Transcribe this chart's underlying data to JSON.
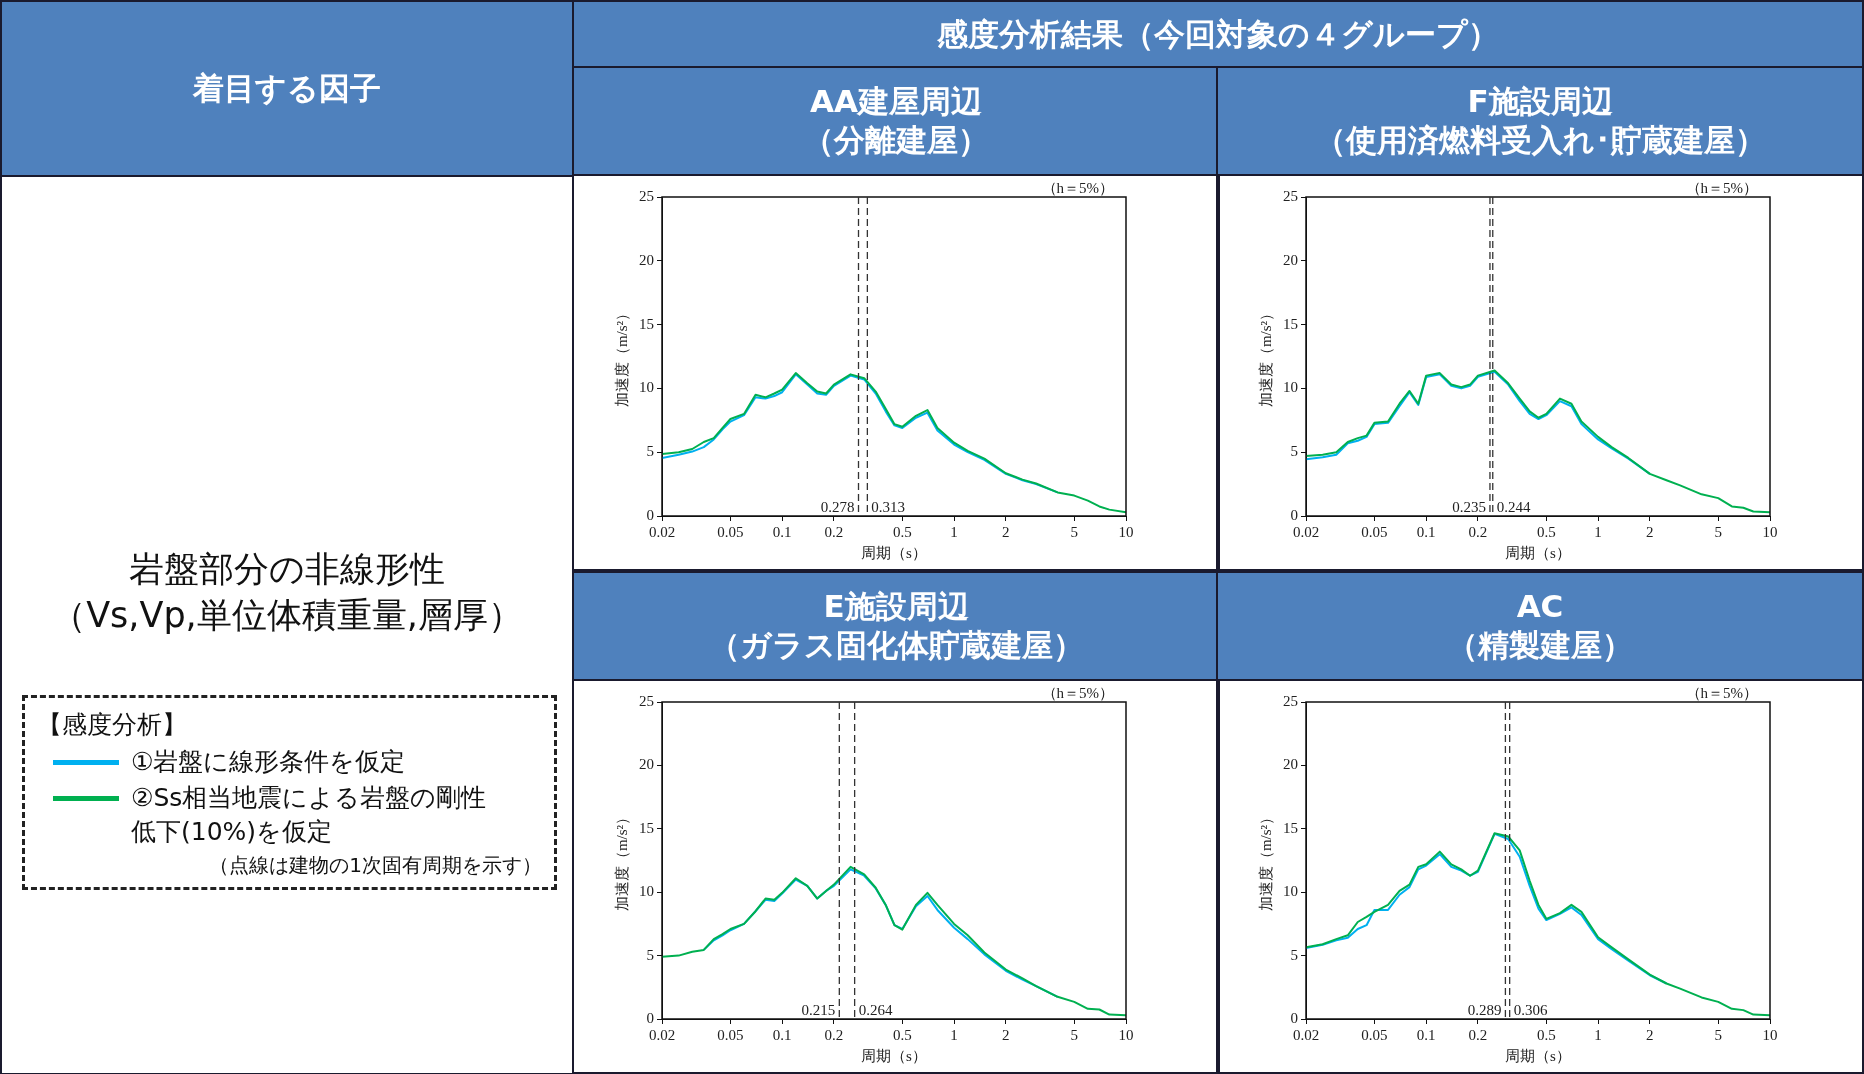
{
  "chart_data": [
    {
      "type": "other",
      "title": "着目する因子",
      "subtitle": "感度分析結果（今回対象の４グループ）",
      "annotations": [
        "岩盤部分の非線形性",
        "（Vs,Vp,単位体積重量,層厚）",
        "（点線は建物の1次固有周期を示す）"
      ]
    },
    {
      "type": "line",
      "title": "AA建屋周辺",
      "subtitle": "（分離建屋）",
      "xlabel": "周期（s）",
      "ylabel": "加速度（m/s²）",
      "log": "x",
      "legend": "left",
      "legend_title": "【感度分析】",
      "x": [
        0.02,
        0.025,
        0.03,
        0.035,
        0.04,
        0.045,
        0.05,
        0.06,
        0.07,
        0.08,
        0.09,
        0.1,
        0.12,
        0.14,
        0.16,
        0.18,
        0.2,
        0.25,
        0.3,
        0.35,
        0.4,
        0.45,
        0.5,
        0.6,
        0.7,
        0.8,
        1,
        1.2,
        1.5,
        2,
        2.5,
        3,
        4,
        5,
        6,
        7,
        8,
        10
      ],
      "series": [
        {
          "name": "①岩盤に線形条件を仮定",
          "color": "#00b0f0",
          "values": [
            4.55,
            4.8,
            5.05,
            5.4,
            6.0,
            6.8,
            7.4,
            7.9,
            9.3,
            9.2,
            9.4,
            9.7,
            11.1,
            10.3,
            9.6,
            9.5,
            10.2,
            11.0,
            10.7,
            9.6,
            8.2,
            7.1,
            6.9,
            7.7,
            8.1,
            6.7,
            5.6,
            5.0,
            4.4,
            3.3,
            2.8,
            2.5,
            1.85,
            null,
            null,
            null,
            null,
            null
          ]
        },
        {
          "name": "②Ss相当地震による岩盤の剛性低下(10%)を仮定",
          "color": "#00b050",
          "values": [
            4.85,
            5.0,
            5.25,
            5.8,
            6.1,
            6.9,
            7.6,
            8.0,
            9.5,
            9.3,
            9.6,
            9.9,
            11.2,
            10.4,
            9.75,
            9.6,
            10.3,
            11.1,
            10.8,
            9.75,
            8.4,
            7.2,
            7.0,
            7.85,
            8.3,
            6.9,
            5.75,
            5.1,
            4.5,
            3.35,
            2.85,
            2.55,
            1.85,
            1.6,
            1.2,
            0.75,
            0.5,
            0.3
          ]
        }
      ],
      "xlim": [
        0.02,
        10
      ],
      "ylim": [
        0,
        25
      ],
      "xticks": [
        {
          "value": 0.02,
          "label": "0.02"
        },
        {
          "value": 0.05,
          "label": "0.05"
        },
        {
          "value": 0.1,
          "label": "0.1"
        },
        {
          "value": 0.2,
          "label": "0.2"
        },
        {
          "value": 0.5,
          "label": "0.5"
        },
        1,
        2,
        5,
        10
      ],
      "yticks": [
        0,
        5,
        10,
        15,
        20,
        25
      ],
      "ref_lines": [
        {
          "axis": "x",
          "value": 0.278,
          "label": "0.278",
          "line_style": "dashed"
        },
        {
          "axis": "x",
          "value": 0.313,
          "label": "0.313",
          "line_style": "dashed"
        }
      ],
      "annotations": [
        "（h＝5%）"
      ]
    },
    {
      "type": "line",
      "title": "F施設周辺",
      "subtitle": "（使用済燃料受入れ･貯蔵建屋）",
      "xlabel": "周期（s）",
      "ylabel": "加速度（m/s²）",
      "log": "x",
      "x": [
        0.02,
        0.025,
        0.03,
        0.035,
        0.04,
        0.045,
        0.05,
        0.06,
        0.07,
        0.08,
        0.09,
        0.1,
        0.12,
        0.14,
        0.16,
        0.18,
        0.2,
        0.25,
        0.3,
        0.35,
        0.4,
        0.45,
        0.5,
        0.6,
        0.7,
        0.8,
        1,
        1.2,
        1.5,
        2,
        2.5,
        3,
        4,
        5,
        6,
        7,
        8,
        10
      ],
      "series": [
        {
          "color": "#00b0f0",
          "values": [
            4.45,
            4.6,
            4.8,
            5.7,
            5.9,
            6.2,
            7.2,
            7.3,
            8.6,
            9.7,
            8.7,
            10.9,
            11.1,
            10.2,
            10.0,
            10.2,
            10.9,
            11.3,
            10.3,
            9.0,
            8.0,
            7.6,
            7.9,
            9.0,
            8.6,
            7.2,
            6.0,
            5.3,
            4.5,
            3.3,
            null,
            null,
            null,
            null,
            null,
            null,
            null,
            null
          ]
        },
        {
          "color": "#00b050",
          "values": [
            4.7,
            4.8,
            5.0,
            5.8,
            6.1,
            6.3,
            7.3,
            7.4,
            8.8,
            9.8,
            8.8,
            11.0,
            11.2,
            10.3,
            10.1,
            10.3,
            11.0,
            11.4,
            10.4,
            9.2,
            8.2,
            7.7,
            8.0,
            9.2,
            8.8,
            7.4,
            6.2,
            5.4,
            4.55,
            3.3,
            2.8,
            2.4,
            1.7,
            1.4,
            0.75,
            0.65,
            0.35,
            0.3
          ]
        }
      ],
      "xlim": [
        0.02,
        10
      ],
      "ylim": [
        0,
        25
      ],
      "xticks": [
        {
          "value": 0.02,
          "label": "0.02"
        },
        {
          "value": 0.05,
          "label": "0.05"
        },
        {
          "value": 0.1,
          "label": "0.1"
        },
        {
          "value": 0.2,
          "label": "0.2"
        },
        {
          "value": 0.5,
          "label": "0.5"
        },
        1,
        2,
        5,
        10
      ],
      "yticks": [
        0,
        5,
        10,
        15,
        20,
        25
      ],
      "ref_lines": [
        {
          "axis": "x",
          "value": 0.235,
          "label": "0.235",
          "line_style": "dashed"
        },
        {
          "axis": "x",
          "value": 0.244,
          "label": "0.244",
          "line_style": "dashed"
        }
      ],
      "annotations": [
        "（h＝5%）"
      ]
    },
    {
      "type": "line",
      "title": "E施設周辺",
      "subtitle": "（ガラス固化体貯蔵建屋）",
      "xlabel": "周期（s）",
      "ylabel": "加速度（m/s²）",
      "log": "x",
      "x": [
        0.02,
        0.025,
        0.03,
        0.035,
        0.04,
        0.045,
        0.05,
        0.06,
        0.07,
        0.08,
        0.09,
        0.1,
        0.12,
        0.14,
        0.16,
        0.18,
        0.2,
        0.25,
        0.3,
        0.35,
        0.4,
        0.45,
        0.5,
        0.6,
        0.7,
        0.8,
        1,
        1.2,
        1.5,
        2,
        2.5,
        3,
        4,
        5,
        6,
        7,
        8,
        10
      ],
      "series": [
        {
          "color": "#00b0f0",
          "values": [
            null,
            null,
            null,
            5.45,
            6.2,
            6.6,
            7.0,
            7.5,
            8.5,
            9.4,
            9.3,
            9.9,
            11.0,
            10.5,
            9.5,
            10.1,
            10.5,
            11.8,
            11.3,
            10.3,
            9.0,
            7.4,
            7.1,
            8.9,
            9.7,
            8.6,
            7.2,
            6.3,
            5.1,
            3.8,
            3.1,
            2.6,
            1.75,
            null,
            null,
            null,
            null,
            null
          ]
        },
        {
          "color": "#00b050",
          "values": [
            4.9,
            5.0,
            5.3,
            5.45,
            6.3,
            6.7,
            7.1,
            7.5,
            8.5,
            9.5,
            9.4,
            9.95,
            11.1,
            10.5,
            9.5,
            10.1,
            10.6,
            12.0,
            11.4,
            10.35,
            9.0,
            7.4,
            7.05,
            9.0,
            9.95,
            9.0,
            7.5,
            6.6,
            5.25,
            3.9,
            3.2,
            2.6,
            1.75,
            1.35,
            0.8,
            0.75,
            0.35,
            0.3
          ]
        }
      ],
      "xlim": [
        0.02,
        10
      ],
      "ylim": [
        0,
        25
      ],
      "xticks": [
        {
          "value": 0.02,
          "label": "0.02"
        },
        {
          "value": 0.05,
          "label": "0.05"
        },
        {
          "value": 0.1,
          "label": "0.1"
        },
        {
          "value": 0.2,
          "label": "0.2"
        },
        {
          "value": 0.5,
          "label": "0.5"
        },
        1,
        2,
        5,
        10
      ],
      "yticks": [
        0,
        5,
        10,
        15,
        20,
        25
      ],
      "ref_lines": [
        {
          "axis": "x",
          "value": 0.215,
          "label": "0.215",
          "line_style": "dashed"
        },
        {
          "axis": "x",
          "value": 0.264,
          "label": "0.264",
          "line_style": "dashed"
        }
      ],
      "annotations": [
        "（h＝5%）"
      ]
    },
    {
      "type": "line",
      "title": "AC",
      "subtitle": "（精製建屋）",
      "xlabel": "周期（s）",
      "ylabel": "加速度（m/s²）",
      "log": "x",
      "x": [
        0.02,
        0.025,
        0.03,
        0.035,
        0.04,
        0.045,
        0.05,
        0.06,
        0.07,
        0.08,
        0.09,
        0.1,
        0.12,
        0.14,
        0.16,
        0.18,
        0.2,
        0.25,
        0.3,
        0.35,
        0.4,
        0.45,
        0.5,
        0.6,
        0.7,
        0.8,
        1,
        1.2,
        1.5,
        2,
        2.5,
        3,
        4,
        5,
        6,
        7,
        8,
        10
      ],
      "series": [
        {
          "color": "#00b0f0",
          "values": [
            5.6,
            5.85,
            6.2,
            6.4,
            7.1,
            7.4,
            8.6,
            8.6,
            9.8,
            10.4,
            11.8,
            12.1,
            13.0,
            12.0,
            11.7,
            11.3,
            11.6,
            14.6,
            14.2,
            12.8,
            10.5,
            8.7,
            7.8,
            8.3,
            8.8,
            8.2,
            6.3,
            5.5,
            4.6,
            3.45,
            2.8,
            null,
            null,
            null,
            null,
            null,
            null,
            null
          ]
        },
        {
          "color": "#00b050",
          "values": [
            5.65,
            5.9,
            6.3,
            6.6,
            7.65,
            8.05,
            8.45,
            9.0,
            10.1,
            10.6,
            12.0,
            12.2,
            13.2,
            12.2,
            11.8,
            11.3,
            11.7,
            14.65,
            14.4,
            13.3,
            10.9,
            9.0,
            7.9,
            8.35,
            9.0,
            8.45,
            6.45,
            5.65,
            4.7,
            3.5,
            2.8,
            2.4,
            1.7,
            1.35,
            0.8,
            0.7,
            0.35,
            0.3
          ]
        }
      ],
      "xlim": [
        0.02,
        10
      ],
      "ylim": [
        0,
        25
      ],
      "xticks": [
        {
          "value": 0.02,
          "label": "0.02"
        },
        {
          "value": 0.05,
          "label": "0.05"
        },
        {
          "value": 0.1,
          "label": "0.1"
        },
        {
          "value": 0.2,
          "label": "0.2"
        },
        {
          "value": 0.5,
          "label": "0.5"
        },
        1,
        2,
        5,
        10
      ],
      "yticks": [
        0,
        5,
        10,
        15,
        20,
        25
      ],
      "ref_lines": [
        {
          "axis": "x",
          "value": 0.289,
          "label": "0.289",
          "line_style": "dashed"
        },
        {
          "axis": "x",
          "value": 0.306,
          "label": "0.306",
          "line_style": "dashed"
        }
      ],
      "annotations": [
        "（h＝5%）"
      ]
    }
  ]
}
